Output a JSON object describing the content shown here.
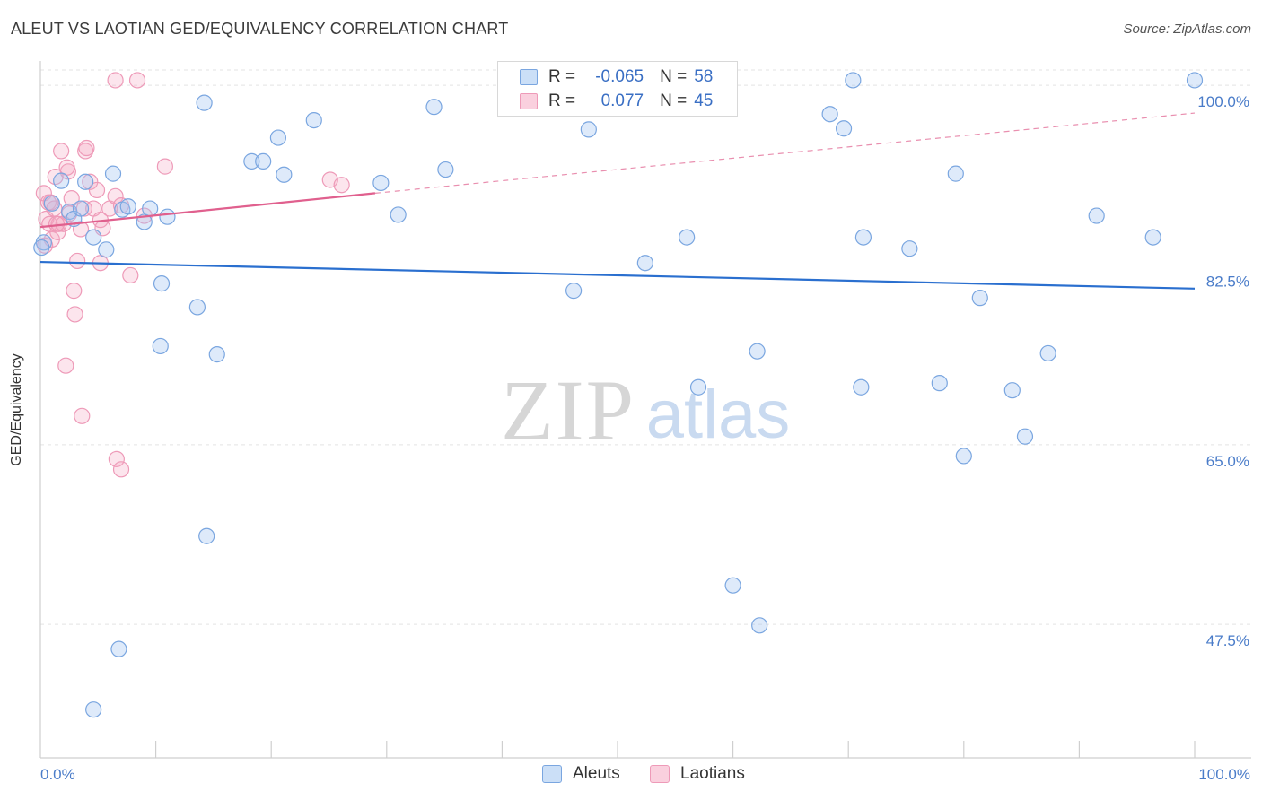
{
  "title": "ALEUT VS LAOTIAN GED/EQUIVALENCY CORRELATION CHART",
  "source": "Source: ZipAtlas.com",
  "watermark": {
    "zip": "ZIP",
    "atlas": "atlas"
  },
  "colors": {
    "aleut_fill": "rgba(160,196,240,0.35)",
    "aleut_stroke": "#7aa6e0",
    "aleut_line": "#2a6fcf",
    "laotian_fill": "rgba(245,170,195,0.30)",
    "laotian_stroke": "#ee9ab8",
    "laotian_line": "#e0608e",
    "axis_text": "#4a7cc9",
    "grid": "#e3e3e3"
  },
  "legend_top": {
    "rows": [
      {
        "r_label": "R =",
        "r_value": "-0.065",
        "n_label": "N =",
        "n_value": "58"
      },
      {
        "r_label": "R =",
        "r_value": "0.077",
        "n_label": "N =",
        "n_value": "45"
      }
    ]
  },
  "legend_bottom": {
    "aleut": "Aleuts",
    "laotian": "Laotians"
  },
  "chart_data": {
    "type": "scatter",
    "title": "ALEUT VS LAOTIAN GED/EQUIVALENCY CORRELATION CHART",
    "xlabel": "",
    "ylabel": "GED/Equivalency",
    "xlim": [
      0,
      100
    ],
    "ylim": [
      34.5,
      101.5
    ],
    "x_tick_labels": [
      "0.0%",
      "100.0%"
    ],
    "y_ticks": [
      47.5,
      65.0,
      82.5,
      100.0
    ],
    "y_tick_labels": [
      "47.5%",
      "65.0%",
      "82.5%",
      "100.0%"
    ],
    "grid": true,
    "legend_position": "top-center",
    "series": [
      {
        "name": "Aleuts",
        "r": -0.065,
        "n": 58,
        "trend": {
          "x": [
            0,
            100
          ],
          "y": [
            82.8,
            80.2
          ]
        },
        "points": [
          [
            0.3,
            84.7
          ],
          [
            1.0,
            88.5
          ],
          [
            1.8,
            90.7
          ],
          [
            2.5,
            87.7
          ],
          [
            2.9,
            87.0
          ],
          [
            3.5,
            88.0
          ],
          [
            3.9,
            90.6
          ],
          [
            4.6,
            85.2
          ],
          [
            5.7,
            84.0
          ],
          [
            6.3,
            91.4
          ],
          [
            7.1,
            87.9
          ],
          [
            7.6,
            88.2
          ],
          [
            9.0,
            86.7
          ],
          [
            9.5,
            88.0
          ],
          [
            11.0,
            87.2
          ],
          [
            14.2,
            98.3
          ],
          [
            10.5,
            80.7
          ],
          [
            10.4,
            74.6
          ],
          [
            13.6,
            78.4
          ],
          [
            15.3,
            73.8
          ],
          [
            14.4,
            56.1
          ],
          [
            6.8,
            45.1
          ],
          [
            4.6,
            39.2
          ],
          [
            18.3,
            92.6
          ],
          [
            19.3,
            92.6
          ],
          [
            20.6,
            94.9
          ],
          [
            21.1,
            91.3
          ],
          [
            23.7,
            96.6
          ],
          [
            29.5,
            90.5
          ],
          [
            31.0,
            87.4
          ],
          [
            34.1,
            97.9
          ],
          [
            35.1,
            91.8
          ],
          [
            46.2,
            80.0
          ],
          [
            47.5,
            95.7
          ],
          [
            52.4,
            82.7
          ],
          [
            56.3,
            100.5
          ],
          [
            56.0,
            85.2
          ],
          [
            57.0,
            70.6
          ],
          [
            60.0,
            51.3
          ],
          [
            62.1,
            74.1
          ],
          [
            62.3,
            47.4
          ],
          [
            68.4,
            97.2
          ],
          [
            69.6,
            95.8
          ],
          [
            70.4,
            100.5
          ],
          [
            71.3,
            85.2
          ],
          [
            71.1,
            70.6
          ],
          [
            75.3,
            84.1
          ],
          [
            77.9,
            71.0
          ],
          [
            79.3,
            91.4
          ],
          [
            80.0,
            63.9
          ],
          [
            81.4,
            79.3
          ],
          [
            84.2,
            70.3
          ],
          [
            85.3,
            65.8
          ],
          [
            87.3,
            73.9
          ],
          [
            91.5,
            87.3
          ],
          [
            96.4,
            85.2
          ],
          [
            100.0,
            100.5
          ],
          [
            0.1,
            84.2
          ]
        ]
      },
      {
        "name": "Laotians",
        "r": 0.077,
        "n": 45,
        "trend": {
          "x": [
            0,
            29
          ],
          "y": [
            86.2,
            89.5
          ],
          "dashed_to": [
            100,
            97.3
          ]
        },
        "points": [
          [
            0.3,
            89.5
          ],
          [
            0.5,
            87.0
          ],
          [
            0.7,
            88.6
          ],
          [
            0.8,
            86.5
          ],
          [
            1.0,
            85.0
          ],
          [
            1.2,
            88.0
          ],
          [
            1.3,
            91.1
          ],
          [
            1.5,
            85.7
          ],
          [
            1.6,
            86.5
          ],
          [
            1.8,
            93.6
          ],
          [
            2.0,
            86.5
          ],
          [
            2.2,
            72.7
          ],
          [
            2.4,
            91.6
          ],
          [
            2.5,
            87.5
          ],
          [
            2.7,
            89.0
          ],
          [
            2.9,
            80.0
          ],
          [
            3.0,
            77.7
          ],
          [
            3.2,
            82.9
          ],
          [
            3.5,
            86.0
          ],
          [
            3.8,
            88.0
          ],
          [
            3.6,
            67.8
          ],
          [
            3.9,
            93.6
          ],
          [
            4.0,
            93.9
          ],
          [
            4.3,
            90.6
          ],
          [
            4.6,
            88.0
          ],
          [
            4.9,
            89.8
          ],
          [
            5.2,
            86.9
          ],
          [
            5.4,
            86.1
          ],
          [
            5.2,
            82.7
          ],
          [
            6.0,
            88.0
          ],
          [
            6.5,
            89.2
          ],
          [
            6.6,
            63.6
          ],
          [
            7.0,
            88.3
          ],
          [
            7.0,
            62.6
          ],
          [
            7.8,
            81.5
          ],
          [
            9.0,
            87.3
          ],
          [
            10.8,
            92.1
          ],
          [
            6.5,
            100.5
          ],
          [
            8.4,
            100.5
          ],
          [
            25.1,
            90.8
          ],
          [
            26.1,
            90.3
          ],
          [
            0.4,
            84.4
          ],
          [
            0.9,
            88.6
          ],
          [
            1.4,
            86.5
          ],
          [
            2.3,
            92.0
          ]
        ]
      }
    ]
  }
}
